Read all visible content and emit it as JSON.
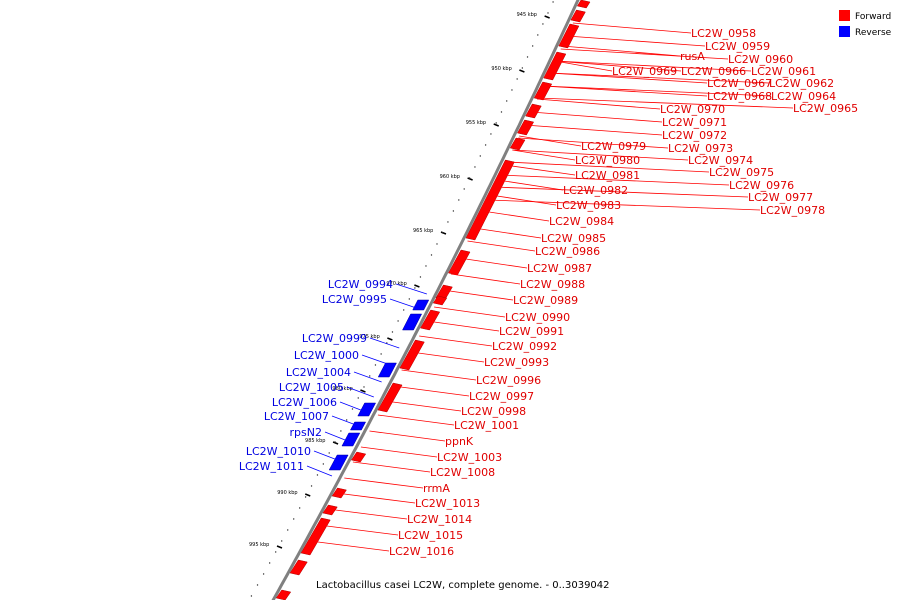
{
  "legend": [
    {
      "label": "Forward",
      "color": "#ff0000"
    },
    {
      "label": "Reverse",
      "color": "#0000ff"
    }
  ],
  "caption": "Lactobacillus casei LC2W, complete genome. - 0..3039042",
  "colors": {
    "forward": "#ff0000",
    "reverse": "#0000ff",
    "backbone": "#808080"
  },
  "scale_labels": [
    "945 kbp",
    "950 kbp",
    "955 kbp",
    "960 kbp",
    "965 kbp",
    "970 kbp",
    "975 kbp",
    "980 kbp",
    "985 kbp",
    "990 kbp",
    "995 kbp"
  ],
  "forward_genes": [
    "LC2W_0958",
    "LC2W_0959",
    "rusA",
    "LC2W_0960",
    "LC2W_0969",
    "LC2W_0966",
    "LC2W_0961",
    "LC2W_0967",
    "LC2W_0962",
    "LC2W_0968",
    "LC2W_0964",
    "LC2W_0965",
    "LC2W_0970",
    "LC2W_0971",
    "LC2W_0972",
    "LC2W_0979",
    "LC2W_0973",
    "LC2W_0980",
    "LC2W_0974",
    "LC2W_0981",
    "LC2W_0975",
    "LC2W_0976",
    "LC2W_0982",
    "LC2W_0977",
    "LC2W_0983",
    "LC2W_0978",
    "LC2W_0984",
    "LC2W_0985",
    "LC2W_0986",
    "LC2W_0987",
    "LC2W_0988",
    "LC2W_0989",
    "LC2W_0990",
    "LC2W_0991",
    "LC2W_0992",
    "LC2W_0993",
    "LC2W_0996",
    "LC2W_0997",
    "LC2W_0998",
    "LC2W_1001",
    "ppnK",
    "LC2W_1003",
    "LC2W_1008",
    "rrmA",
    "LC2W_1013",
    "LC2W_1014",
    "LC2W_1015",
    "LC2W_1016"
  ],
  "reverse_genes": [
    "LC2W_0994",
    "LC2W_0995",
    "LC2W_0999",
    "LC2W_1000",
    "LC2W_1004",
    "LC2W_1005",
    "LC2W_1006",
    "LC2W_1007",
    "rpsN2",
    "LC2W_1010",
    "LC2W_1011"
  ]
}
